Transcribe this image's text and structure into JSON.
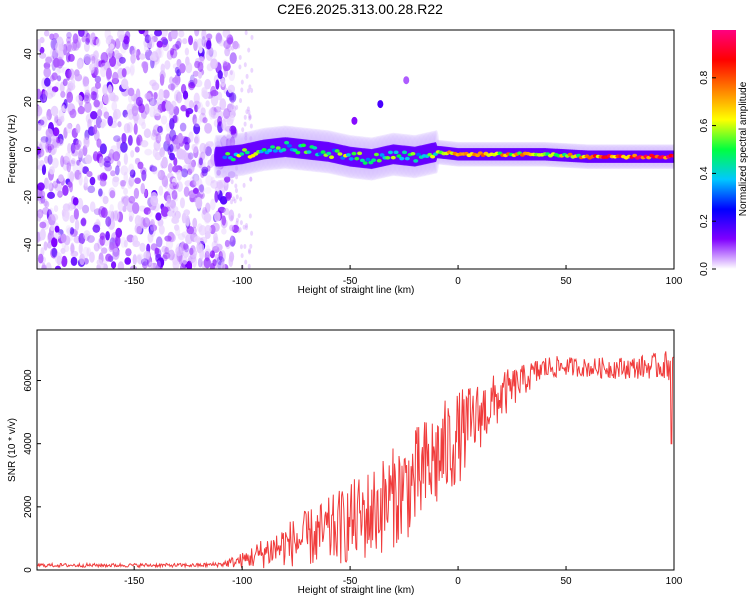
{
  "title": "C2E6.2025.313.00.28.R22",
  "chart_data": [
    {
      "type": "heatmap",
      "name": "spectrogram",
      "xlabel": "Height of straight line (km)",
      "ylabel": "Frequency (Hz)",
      "xlim": [
        -195,
        100
      ],
      "ylim": [
        -50,
        50
      ],
      "xticks": [
        -150,
        -100,
        -50,
        0,
        50,
        100
      ],
      "yticks": [
        -40,
        -20,
        0,
        20,
        40
      ],
      "colorbar": {
        "label": "Normalized spectral amplitude",
        "range": [
          0,
          1
        ],
        "ticks": [
          0.0,
          0.2,
          0.4,
          0.6,
          0.8
        ],
        "colors": [
          "#ffffff",
          "#8000ff",
          "#0000ff",
          "#00c8ff",
          "#00ff40",
          "#ffff00",
          "#ff8000",
          "#ff0000",
          "#ff0080"
        ]
      },
      "signal_track": {
        "description_points_x": [
          -110,
          -100,
          -90,
          -80,
          -70,
          -60,
          -50,
          -40,
          -30,
          -20,
          -10,
          0,
          20,
          40,
          60,
          80,
          100
        ],
        "description_points_freq": [
          -3,
          -2,
          0,
          1,
          0,
          -1,
          -3,
          -4,
          -2,
          -3,
          -1,
          -2,
          -2,
          -2,
          -3,
          -3,
          -3
        ]
      }
    },
    {
      "type": "line",
      "name": "snr",
      "xlabel": "Height of straight line (km)",
      "ylabel": "SNR (10 * v/v)",
      "xlim": [
        -195,
        100
      ],
      "ylim": [
        0,
        7600
      ],
      "xticks": [
        -150,
        -100,
        -50,
        0,
        50,
        100
      ],
      "yticks": [
        0,
        2000,
        4000,
        6000
      ],
      "color": "#f03c3c",
      "trend": {
        "x": [
          -195,
          -120,
          -110,
          -100,
          -90,
          -80,
          -70,
          -60,
          -50,
          -40,
          -30,
          -20,
          -10,
          0,
          10,
          20,
          30,
          40,
          50,
          60,
          70,
          80,
          90,
          100
        ],
        "mean": [
          150,
          150,
          180,
          300,
          550,
          800,
          1000,
          1200,
          1500,
          1800,
          2300,
          2800,
          3500,
          4200,
          4900,
          5500,
          6000,
          6400,
          6450,
          6400,
          6400,
          6400,
          6450,
          6500
        ],
        "spread": [
          60,
          60,
          80,
          250,
          500,
          700,
          900,
          1100,
          1300,
          1500,
          1600,
          1700,
          1700,
          1500,
          1100,
          800,
          500,
          400,
          300,
          300,
          350,
          350,
          400,
          500
        ]
      }
    }
  ]
}
